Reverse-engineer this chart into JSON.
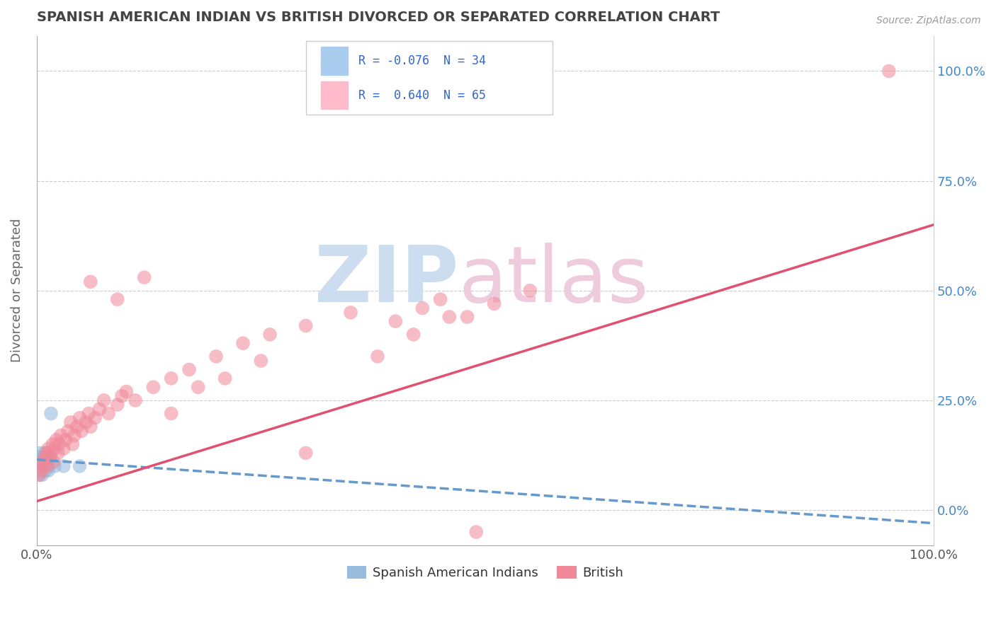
{
  "title": "SPANISH AMERICAN INDIAN VS BRITISH DIVORCED OR SEPARATED CORRELATION CHART",
  "source": "Source: ZipAtlas.com",
  "ylabel": "Divorced or Separated",
  "legend_bottom_labels": [
    "Spanish American Indians",
    "British"
  ],
  "blue_color": "#6699cc",
  "pink_color": "#e05070",
  "blue_scatter_color": "#99bbdd",
  "pink_scatter_color": "#f08898",
  "xlim": [
    0,
    1.0
  ],
  "ylim": [
    -0.08,
    1.08
  ],
  "xtick_labels": [
    "0.0%",
    "100.0%"
  ],
  "ytick_labels": [
    "0.0%",
    "25.0%",
    "50.0%",
    "75.0%",
    "100.0%"
  ],
  "ytick_positions": [
    0.0,
    0.25,
    0.5,
    0.75,
    1.0
  ],
  "blue_scatter_x": [
    0.001,
    0.001,
    0.001,
    0.002,
    0.002,
    0.003,
    0.003,
    0.003,
    0.004,
    0.004,
    0.004,
    0.005,
    0.005,
    0.006,
    0.006,
    0.006,
    0.007,
    0.007,
    0.008,
    0.008,
    0.009,
    0.009,
    0.01,
    0.01,
    0.011,
    0.011,
    0.012,
    0.013,
    0.014,
    0.015,
    0.016,
    0.02,
    0.03,
    0.048
  ],
  "blue_scatter_y": [
    0.12,
    0.1,
    0.09,
    0.11,
    0.09,
    0.12,
    0.1,
    0.08,
    0.13,
    0.11,
    0.09,
    0.12,
    0.1,
    0.11,
    0.09,
    0.08,
    0.1,
    0.12,
    0.11,
    0.09,
    0.1,
    0.13,
    0.11,
    0.09,
    0.12,
    0.1,
    0.11,
    0.09,
    0.1,
    0.12,
    0.22,
    0.1,
    0.1,
    0.1
  ],
  "blue_line_x": [
    0.0,
    1.0
  ],
  "blue_line_y": [
    0.115,
    -0.03
  ],
  "pink_scatter_x": [
    0.003,
    0.005,
    0.006,
    0.008,
    0.009,
    0.01,
    0.011,
    0.012,
    0.013,
    0.015,
    0.016,
    0.018,
    0.019,
    0.02,
    0.022,
    0.024,
    0.025,
    0.027,
    0.03,
    0.032,
    0.035,
    0.038,
    0.04,
    0.042,
    0.045,
    0.048,
    0.05,
    0.055,
    0.058,
    0.06,
    0.065,
    0.07,
    0.075,
    0.08,
    0.09,
    0.095,
    0.1,
    0.11,
    0.13,
    0.15,
    0.17,
    0.2,
    0.23,
    0.26,
    0.3,
    0.35,
    0.4,
    0.43,
    0.45,
    0.48,
    0.51,
    0.55,
    0.06,
    0.09,
    0.12,
    0.15,
    0.18,
    0.21,
    0.25,
    0.3,
    0.38,
    0.42,
    0.46,
    0.95,
    0.49
  ],
  "pink_scatter_y": [
    0.08,
    0.09,
    0.11,
    0.1,
    0.12,
    0.11,
    0.13,
    0.1,
    0.14,
    0.12,
    0.13,
    0.15,
    0.11,
    0.14,
    0.16,
    0.13,
    0.15,
    0.17,
    0.14,
    0.16,
    0.18,
    0.2,
    0.15,
    0.17,
    0.19,
    0.21,
    0.18,
    0.2,
    0.22,
    0.19,
    0.21,
    0.23,
    0.25,
    0.22,
    0.24,
    0.26,
    0.27,
    0.25,
    0.28,
    0.3,
    0.32,
    0.35,
    0.38,
    0.4,
    0.42,
    0.45,
    0.43,
    0.46,
    0.48,
    0.44,
    0.47,
    0.5,
    0.52,
    0.48,
    0.53,
    0.22,
    0.28,
    0.3,
    0.34,
    0.13,
    0.35,
    0.4,
    0.44,
    1.0,
    -0.05
  ],
  "pink_line_x": [
    0.0,
    1.0
  ],
  "pink_line_y": [
    0.02,
    0.65
  ],
  "background_color": "#ffffff",
  "grid_color": "#cccccc",
  "title_color": "#444444",
  "axis_label_color": "#666666",
  "right_tick_color": "#4488cc",
  "legend_text_color": "#3366cc"
}
